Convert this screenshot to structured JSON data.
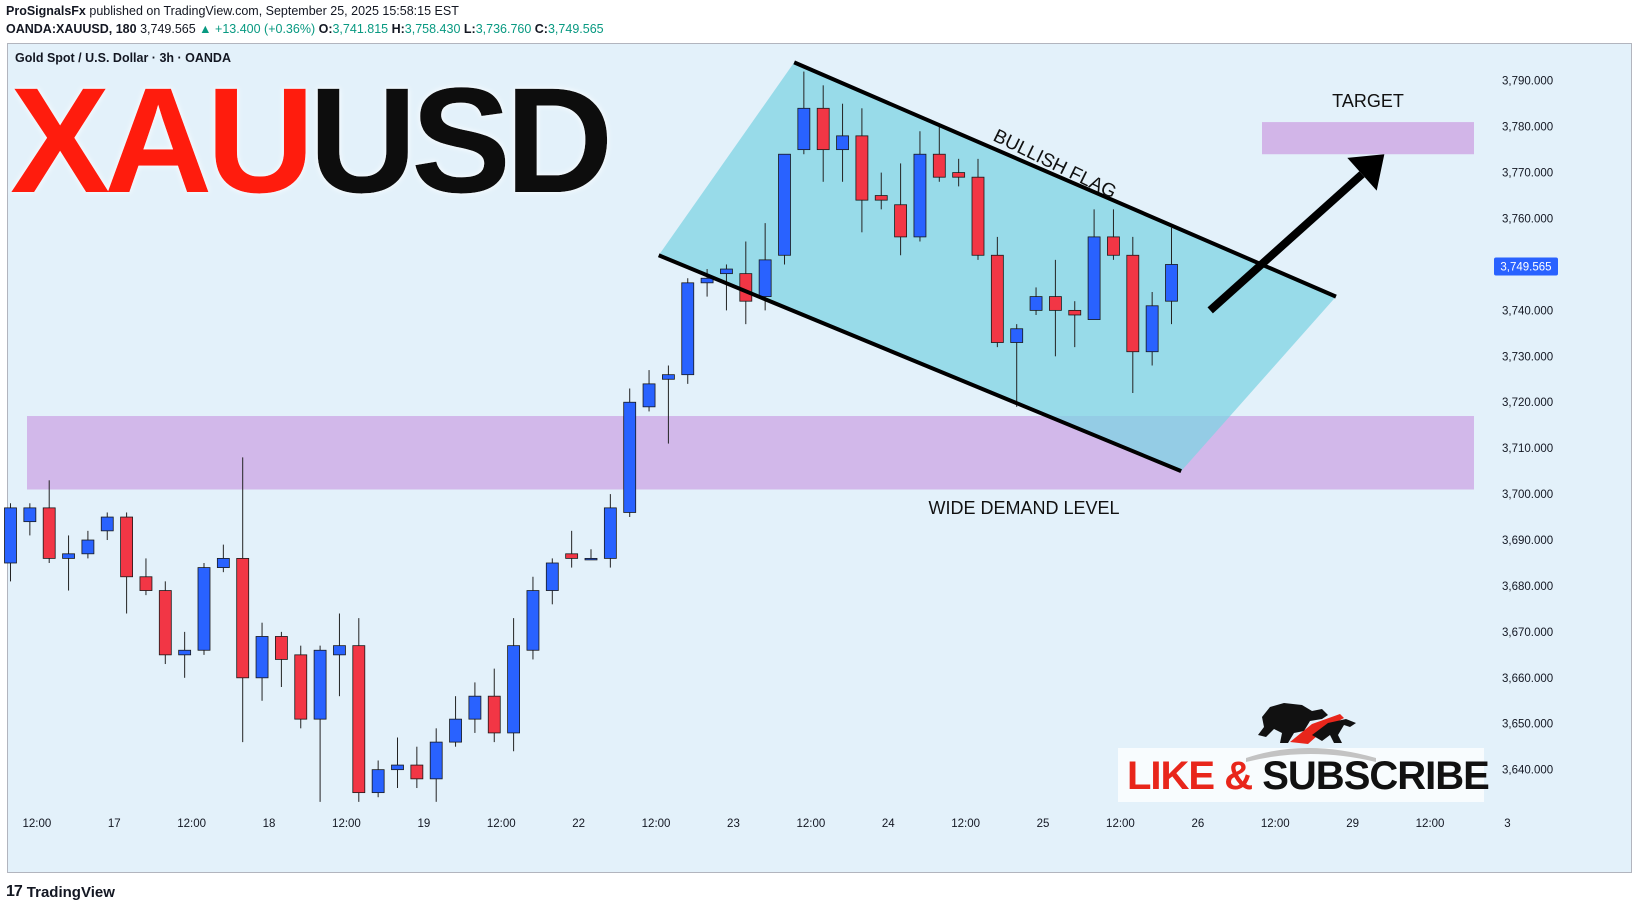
{
  "header": {
    "author": "ProSignalsFx",
    "published_text": "published on TradingView.com, September 25, 2025 15:58:15 EST",
    "symbol": "OANDA:XAUUSD, 180",
    "last_price": "3,749.565",
    "change_arrow": "▲",
    "change": "+13.400 (+0.36%)",
    "o_label": "O:",
    "o_val": "3,741.815",
    "h_label": "H:",
    "h_val": "3,758.430",
    "l_label": "L:",
    "l_val": "3,736.760",
    "c_label": "C:",
    "c_val": "3,749.565"
  },
  "colors": {
    "bull": "#2962ff",
    "bear": "#f23645",
    "plot_bg": "#e3f1fa",
    "zone": "#cfaee6",
    "flag": "#7fd3e3",
    "title_red": "#ff1a0a"
  },
  "chart_data": {
    "type": "candlestick",
    "instrument_line": "Gold Spot / U.S. Dollar · 3h · OANDA",
    "title_part1": "XAU",
    "title_part2": "USD",
    "ylim": [
      3631,
      3798
    ],
    "y_ticks": [
      3640,
      3650,
      3660,
      3670,
      3680,
      3690,
      3700,
      3710,
      3720,
      3730,
      3740,
      3750,
      3760,
      3770,
      3780,
      3790
    ],
    "y_tick_labels": [
      "3,640.000",
      "3,650.000",
      "3,660.000",
      "3,670.000",
      "3,680.000",
      "3,690.000",
      "3,700.000",
      "3,710.000",
      "3,720.000",
      "3,730.000",
      "3,740.000",
      "3,750.000",
      "3,760.000",
      "3,770.000",
      "3,780.000",
      "3,790.000"
    ],
    "x_labels": [
      "12:00",
      "17",
      "12:00",
      "18",
      "12:00",
      "19",
      "12:00",
      "22",
      "12:00",
      "23",
      "12:00",
      "24",
      "12:00",
      "25",
      "12:00",
      "26",
      "12:00",
      "29",
      "12:00",
      "3"
    ],
    "x_label_bar_index": [
      1,
      5,
      9,
      13,
      17,
      21,
      25,
      29,
      33,
      37,
      41,
      45,
      49,
      53,
      57,
      61,
      65,
      69,
      73,
      77
    ],
    "price_label": "3,749.565",
    "price_value": 3749.565,
    "candles": [
      [
        3685,
        3698,
        3681,
        3697
      ],
      [
        3694,
        3698,
        3691,
        3697
      ],
      [
        3697,
        3703,
        3685,
        3686
      ],
      [
        3686,
        3691,
        3679,
        3687
      ],
      [
        3687,
        3692,
        3686,
        3690
      ],
      [
        3692,
        3696,
        3690,
        3695
      ],
      [
        3695,
        3696,
        3674,
        3682
      ],
      [
        3682,
        3686,
        3678,
        3679
      ],
      [
        3679,
        3681,
        3663,
        3665
      ],
      [
        3665,
        3670,
        3660,
        3666
      ],
      [
        3666,
        3685,
        3665,
        3684
      ],
      [
        3684,
        3689,
        3683,
        3686
      ],
      [
        3686,
        3708,
        3646,
        3660
      ],
      [
        3660,
        3672,
        3655,
        3669
      ],
      [
        3669,
        3670,
        3658,
        3664
      ],
      [
        3665,
        3667,
        3649,
        3651
      ],
      [
        3651,
        3667,
        3633,
        3666
      ],
      [
        3665,
        3674,
        3656,
        3667
      ],
      [
        3667,
        3673,
        3633,
        3635
      ],
      [
        3635,
        3642,
        3634,
        3640
      ],
      [
        3640,
        3647,
        3636,
        3641
      ],
      [
        3641,
        3645,
        3636,
        3638
      ],
      [
        3638,
        3649,
        3633,
        3646
      ],
      [
        3646,
        3656,
        3645,
        3651
      ],
      [
        3651,
        3659,
        3648,
        3656
      ],
      [
        3656,
        3662,
        3646,
        3648
      ],
      [
        3648,
        3673,
        3644,
        3667
      ],
      [
        3666,
        3682,
        3664,
        3679
      ],
      [
        3679,
        3686,
        3676,
        3685
      ],
      [
        3687,
        3692,
        3684,
        3686
      ],
      [
        3686,
        3688,
        3686,
        3686
      ],
      [
        3686,
        3700,
        3684,
        3697
      ],
      [
        3696,
        3723,
        3695,
        3720
      ],
      [
        3719,
        3727,
        3718,
        3724
      ],
      [
        3725,
        3728,
        3711,
        3726
      ],
      [
        3726,
        3747,
        3724,
        3746
      ],
      [
        3746,
        3749,
        3743,
        3747
      ],
      [
        3748,
        3750,
        3740,
        3749
      ],
      [
        3748,
        3755,
        3737,
        3742
      ],
      [
        3743,
        3759,
        3740,
        3751
      ],
      [
        3752,
        3774,
        3750,
        3774
      ],
      [
        3775,
        3792,
        3774,
        3784
      ],
      [
        3784,
        3789,
        3768,
        3775
      ],
      [
        3775,
        3785,
        3768,
        3778
      ],
      [
        3778,
        3784,
        3757,
        3764
      ],
      [
        3765,
        3770,
        3762,
        3764
      ],
      [
        3763,
        3772,
        3752,
        3756
      ],
      [
        3756,
        3779,
        3755,
        3774
      ],
      [
        3774,
        3780,
        3768,
        3769
      ],
      [
        3770,
        3773,
        3767,
        3769
      ],
      [
        3769,
        3773,
        3751,
        3752
      ],
      [
        3752,
        3756,
        3732,
        3733
      ],
      [
        3733,
        3737,
        3719,
        3736
      ],
      [
        3740,
        3745,
        3739,
        3743
      ],
      [
        3743,
        3751,
        3730,
        3740
      ],
      [
        3740,
        3742,
        3732,
        3739
      ],
      [
        3738,
        3762,
        3738,
        3756
      ],
      [
        3756,
        3762,
        3751,
        3752
      ],
      [
        3752,
        3756,
        3722,
        3731
      ],
      [
        3731,
        3744,
        3728,
        3741
      ],
      [
        3742,
        3758,
        3737,
        3750
      ]
    ],
    "annotations": {
      "bullish_flag": "BULLISH FLAG",
      "target": "TARGET",
      "demand": "WIDE DEMAND LEVEL",
      "cta": "LIKE & SUBSCRIBE"
    },
    "demand_zone": [
      3701,
      3717
    ],
    "target_zone": [
      3774,
      3781
    ],
    "flag_upper_line": [
      [
        40.5,
        3794
      ],
      [
        68.5,
        3743
      ]
    ],
    "flag_lower_line": [
      [
        33.5,
        3752
      ],
      [
        60.5,
        3705
      ]
    ],
    "arrow": [
      [
        62,
        3740
      ],
      [
        71,
        3774
      ]
    ]
  },
  "footer": {
    "brand": "TradingView"
  }
}
